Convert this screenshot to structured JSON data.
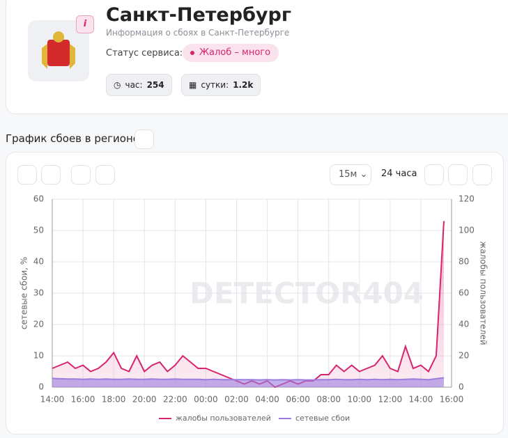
{
  "header": {
    "badge": "i",
    "title": "Санкт-Петербург",
    "subtitle": "Информация о сбоях в Санкт-Петербурге",
    "status_label": "Статус сервиса:",
    "status": "Жалоб – много",
    "stats": [
      {
        "label": "час:",
        "value": 254
      },
      {
        "label": "сутки:",
        "value": "1.2k"
      }
    ]
  },
  "section_title": "График сбоев в регионе",
  "toolbar": {
    "interval": "15м",
    "range": "24 часа"
  },
  "chart_data": {
    "type": "line",
    "watermark": "DETECTOR404",
    "categories": [
      "14:00",
      "14:30",
      "15:00",
      "15:30",
      "16:00",
      "16:30",
      "17:00",
      "17:30",
      "18:00",
      "18:30",
      "19:00",
      "19:30",
      "20:00",
      "20:30",
      "21:00",
      "21:30",
      "22:00",
      "22:30",
      "23:00",
      "23:30",
      "00:00",
      "00:30",
      "01:00",
      "01:30",
      "02:00",
      "02:30",
      "03:00",
      "03:30",
      "04:00",
      "04:30",
      "05:00",
      "05:30",
      "06:00",
      "06:30",
      "07:00",
      "07:30",
      "08:00",
      "08:30",
      "09:00",
      "09:30",
      "10:00",
      "10:30",
      "11:00",
      "11:30",
      "12:00",
      "12:30",
      "13:00",
      "13:30",
      "14:00",
      "14:30",
      "15:00",
      "15:30",
      "16:00"
    ],
    "series": [
      {
        "name": "жалобы пользователей",
        "color": "#d6246e",
        "axis": "y2",
        "values": [
          12,
          14,
          16,
          12,
          14,
          10,
          12,
          16,
          22,
          12,
          10,
          20,
          10,
          14,
          16,
          10,
          14,
          20,
          16,
          12,
          12,
          10,
          8,
          6,
          4,
          2,
          4,
          2,
          4,
          0,
          2,
          4,
          2,
          4,
          4,
          8,
          8,
          14,
          10,
          14,
          10,
          12,
          14,
          20,
          12,
          10,
          26,
          12,
          14,
          10,
          20,
          106,
          null
        ]
      },
      {
        "name": "сетевые сбои",
        "color": "#9b7de0",
        "axis": "y",
        "values": [
          2.8,
          2.7,
          2.6,
          2.6,
          2.5,
          2.6,
          2.5,
          2.6,
          2.5,
          2.5,
          2.6,
          2.5,
          2.5,
          2.6,
          2.5,
          2.5,
          2.6,
          2.5,
          2.5,
          2.5,
          2.4,
          2.5,
          2.4,
          2.4,
          2.4,
          2.4,
          2.4,
          2.3,
          2.4,
          2.3,
          2.4,
          2.3,
          2.4,
          2.3,
          2.3,
          2.4,
          2.4,
          2.5,
          2.4,
          2.4,
          2.5,
          2.4,
          2.5,
          2.4,
          2.5,
          2.4,
          2.5,
          2.6,
          2.5,
          2.4,
          2.7,
          3,
          null
        ]
      }
    ],
    "ylabel": "сетевые сбои, %",
    "y2label": "жалобы пользователей",
    "ylim": [
      0,
      60
    ],
    "yticks": [
      0,
      10,
      20,
      30,
      40,
      50,
      60
    ],
    "y2lim": [
      0,
      120
    ],
    "y2ticks": [
      0,
      20,
      40,
      60,
      80,
      100,
      120
    ],
    "grid": true,
    "legend": "bottom"
  }
}
